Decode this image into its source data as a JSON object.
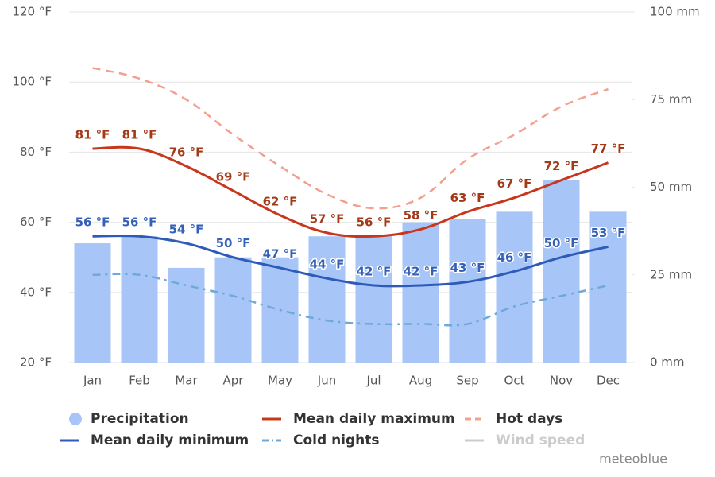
{
  "chart_data": {
    "type": "combo",
    "credit": "meteoblue",
    "categories": [
      "Jan",
      "Feb",
      "Mar",
      "Apr",
      "May",
      "Jun",
      "Jul",
      "Aug",
      "Sep",
      "Oct",
      "Nov",
      "Dec"
    ],
    "ylim": [
      20,
      120
    ],
    "yticks": [
      {
        "value": 20,
        "label": "20 °F"
      },
      {
        "value": 40,
        "label": "40 °F"
      },
      {
        "value": 60,
        "label": "60 °F"
      },
      {
        "value": 80,
        "label": "80 °F"
      },
      {
        "value": 100,
        "label": "100 °F"
      },
      {
        "value": 120,
        "label": "120 °F"
      }
    ],
    "y2lim": [
      0,
      100
    ],
    "y2ticks": [
      {
        "value": 0,
        "label": "0 mm"
      },
      {
        "value": 25,
        "label": "25 mm"
      },
      {
        "value": 50,
        "label": "50 mm"
      },
      {
        "value": 75,
        "label": "75 mm"
      },
      {
        "value": 100,
        "label": "100 mm"
      }
    ],
    "grid": true,
    "series": [
      {
        "name": "Precipitation",
        "type": "bar",
        "axis": "y2",
        "color": "#a8c5f7",
        "values": [
          34,
          36,
          27,
          30,
          30,
          36,
          36,
          40,
          41,
          43,
          52,
          43
        ]
      },
      {
        "name": "Mean daily maximum",
        "type": "line",
        "color": "#c8361b",
        "label_color": "#a33a17",
        "values": [
          81,
          81,
          76,
          69,
          62,
          57,
          56,
          58,
          63,
          67,
          72,
          77
        ],
        "value_labels": [
          "81 °F",
          "81 °F",
          "76 °F",
          "69 °F",
          "62 °F",
          "57 °F",
          "56 °F",
          "58 °F",
          "63 °F",
          "67 °F",
          "72 °F",
          "77 °F"
        ]
      },
      {
        "name": "Hot days",
        "type": "line",
        "dash": "dash",
        "color": "#f2a08f",
        "values": [
          104,
          101,
          95,
          85,
          76,
          68,
          64,
          67,
          78,
          85,
          93,
          98
        ]
      },
      {
        "name": "Mean daily minimum",
        "type": "line",
        "color": "#2e5bb8",
        "label_color": "#3560b8",
        "values": [
          56,
          56,
          54,
          50,
          47,
          44,
          42,
          42,
          43,
          46,
          50,
          53
        ],
        "value_labels": [
          "56 °F",
          "56 °F",
          "54 °F",
          "50 °F",
          "47 °F",
          "44 °F",
          "42 °F",
          "42 °F",
          "43 °F",
          "46 °F",
          "50 °F",
          "53 °F"
        ]
      },
      {
        "name": "Cold nights",
        "type": "line",
        "dash": "dashdot",
        "color": "#6ea9d9",
        "values": [
          45,
          45,
          42,
          39,
          35,
          32,
          31,
          31,
          31,
          36,
          39,
          42
        ]
      },
      {
        "name": "Wind speed",
        "type": "line",
        "color": "#cccccc",
        "hidden": true
      }
    ]
  }
}
